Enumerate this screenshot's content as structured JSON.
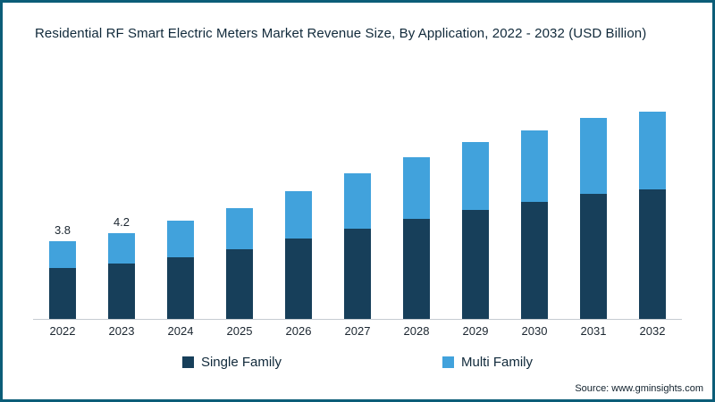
{
  "chart_data": {
    "type": "bar",
    "stacked": true,
    "title": "Residential RF Smart Electric Meters Market Revenue Size, By Application, 2022 - 2032 (USD Billion)",
    "categories": [
      "2022",
      "2023",
      "2024",
      "2025",
      "2026",
      "2027",
      "2028",
      "2029",
      "2030",
      "2031",
      "2032"
    ],
    "series": [
      {
        "name": "Single Family",
        "color": "#173f5a",
        "values": [
          2.5,
          2.7,
          3.0,
          3.4,
          3.9,
          4.4,
          4.9,
          5.3,
          5.7,
          6.1,
          6.3
        ]
      },
      {
        "name": "Multi Family",
        "color": "#41a2dc",
        "values": [
          1.3,
          1.5,
          1.8,
          2.0,
          2.3,
          2.7,
          3.0,
          3.3,
          3.5,
          3.7,
          3.8
        ]
      }
    ],
    "totals": [
      3.8,
      4.2,
      4.8,
      5.4,
      6.2,
      7.1,
      7.9,
      8.6,
      9.2,
      9.8,
      10.1
    ],
    "data_labels": [
      "3.8",
      "4.2",
      "",
      "",
      "",
      "",
      "",
      "",
      "",
      "",
      ""
    ],
    "xlabel": "",
    "ylabel": "",
    "ylim": [
      0,
      11.5
    ],
    "grid": false,
    "legend_position": "bottom"
  },
  "legend": {
    "single_family": "Single Family",
    "multi_family": "Multi Family"
  },
  "source": "Source: www.gminsights.com",
  "colors": {
    "frame_border": "#0b5d78",
    "axis_line": "#c6ccd2",
    "title_text": "#10293a"
  }
}
